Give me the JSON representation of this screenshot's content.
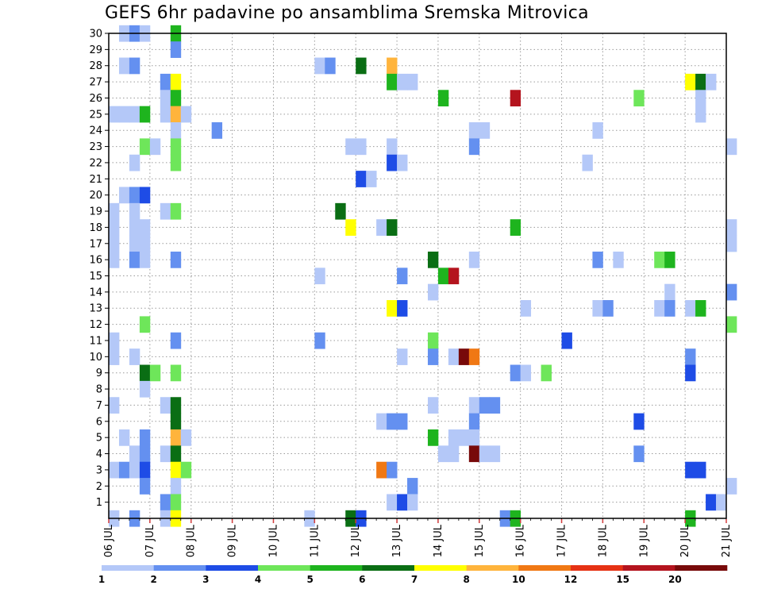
{
  "chart_data": {
    "type": "heatmap",
    "title": "GEFS 6hr padavine po ansamblima Sremska Mitrovica",
    "xlabel": "",
    "ylabel": "",
    "x_tick_labels": [
      "06 JUL",
      "07 JUL",
      "08 JUL",
      "09 JUL",
      "10 JUL",
      "11 JUL",
      "12 JUL",
      "13 JUL",
      "14 JUL",
      "15 JUL",
      "16 JUL",
      "17 JUL",
      "18 JUL",
      "19 JUL",
      "20 JUL",
      "21 JUL"
    ],
    "x_range_days": [
      0,
      15
    ],
    "time_step_hours": 6,
    "y_tick_labels": [
      "1",
      "2",
      "3",
      "4",
      "5",
      "6",
      "7",
      "8",
      "9",
      "10",
      "11",
      "12",
      "13",
      "14",
      "15",
      "16",
      "17",
      "18",
      "19",
      "20",
      "21",
      "22",
      "23",
      "24",
      "25",
      "26",
      "27",
      "28",
      "29",
      "30"
    ],
    "y_range_members": [
      0,
      30
    ],
    "grid": "dotted",
    "colorbar": {
      "position": "bottom",
      "tick_labels": [
        "1",
        "2",
        "3",
        "4",
        "5",
        "6",
        "7",
        "8",
        "10",
        "12",
        "15",
        "20"
      ],
      "colors": [
        "#b4c8f8",
        "#6490f0",
        "#1e4ce6",
        "#6ee65a",
        "#1eb41e",
        "#0a6e14",
        "#ffff00",
        "#ffb43c",
        "#f07814",
        "#e63214",
        "#b4141e",
        "#780a0a"
      ]
    },
    "cells_format": "[member, time_step_index (6h steps from 06 JUL 00Z), color_class (0..11)]",
    "cells": [
      [
        30,
        1,
        0
      ],
      [
        30,
        2,
        1
      ],
      [
        30,
        3,
        0
      ],
      [
        30,
        6,
        4
      ],
      [
        29,
        6,
        1
      ],
      [
        28,
        1,
        0
      ],
      [
        28,
        2,
        1
      ],
      [
        28,
        20,
        0
      ],
      [
        28,
        21,
        1
      ],
      [
        28,
        24,
        5
      ],
      [
        28,
        27,
        7
      ],
      [
        27,
        5,
        1
      ],
      [
        27,
        6,
        6
      ],
      [
        27,
        27,
        4
      ],
      [
        27,
        28,
        0
      ],
      [
        27,
        29,
        0
      ],
      [
        27,
        56,
        6
      ],
      [
        27,
        57,
        5
      ],
      [
        27,
        58,
        0
      ],
      [
        26,
        5,
        0
      ],
      [
        26,
        6,
        4
      ],
      [
        26,
        32,
        4
      ],
      [
        26,
        39,
        10
      ],
      [
        26,
        51,
        3
      ],
      [
        26,
        57,
        0
      ],
      [
        25,
        0,
        0
      ],
      [
        25,
        1,
        0
      ],
      [
        25,
        2,
        0
      ],
      [
        25,
        3,
        4
      ],
      [
        25,
        5,
        0
      ],
      [
        25,
        6,
        7
      ],
      [
        25,
        7,
        0
      ],
      [
        25,
        57,
        0
      ],
      [
        24,
        6,
        0
      ],
      [
        24,
        10,
        1
      ],
      [
        24,
        35,
        0
      ],
      [
        24,
        36,
        0
      ],
      [
        24,
        47,
        0
      ],
      [
        23,
        3,
        3
      ],
      [
        23,
        4,
        0
      ],
      [
        23,
        6,
        3
      ],
      [
        23,
        23,
        0
      ],
      [
        23,
        24,
        0
      ],
      [
        23,
        27,
        0
      ],
      [
        23,
        35,
        1
      ],
      [
        23,
        60,
        0
      ],
      [
        22,
        2,
        0
      ],
      [
        22,
        6,
        3
      ],
      [
        22,
        27,
        2
      ],
      [
        22,
        28,
        0
      ],
      [
        22,
        46,
        0
      ],
      [
        21,
        24,
        2
      ],
      [
        21,
        25,
        0
      ],
      [
        20,
        1,
        0
      ],
      [
        20,
        2,
        1
      ],
      [
        20,
        3,
        2
      ],
      [
        19,
        22,
        5
      ],
      [
        19,
        0,
        0
      ],
      [
        19,
        2,
        0
      ],
      [
        19,
        5,
        0
      ],
      [
        19,
        6,
        3
      ],
      [
        18,
        23,
        6
      ],
      [
        18,
        27,
        3
      ],
      [
        18,
        0,
        0
      ],
      [
        18,
        2,
        0
      ],
      [
        18,
        3,
        0
      ],
      [
        18,
        26,
        0
      ],
      [
        18,
        27,
        5
      ],
      [
        18,
        39,
        4
      ],
      [
        18,
        60,
        0
      ],
      [
        17,
        0,
        0
      ],
      [
        17,
        2,
        0
      ],
      [
        17,
        3,
        0
      ],
      [
        17,
        60,
        0
      ],
      [
        16,
        0,
        0
      ],
      [
        16,
        2,
        1
      ],
      [
        16,
        3,
        0
      ],
      [
        16,
        6,
        1
      ],
      [
        16,
        31,
        5
      ],
      [
        16,
        35,
        0
      ],
      [
        16,
        47,
        1
      ],
      [
        16,
        49,
        0
      ],
      [
        16,
        53,
        3
      ],
      [
        16,
        54,
        4
      ],
      [
        15,
        20,
        0
      ],
      [
        15,
        28,
        1
      ],
      [
        15,
        32,
        4
      ],
      [
        15,
        33,
        10
      ],
      [
        14,
        31,
        0
      ],
      [
        14,
        54,
        0
      ],
      [
        14,
        60,
        1
      ],
      [
        13,
        27,
        6
      ],
      [
        13,
        28,
        2
      ],
      [
        13,
        40,
        0
      ],
      [
        13,
        47,
        0
      ],
      [
        13,
        48,
        1
      ],
      [
        13,
        53,
        0
      ],
      [
        13,
        54,
        1
      ],
      [
        13,
        56,
        0
      ],
      [
        13,
        57,
        4
      ],
      [
        12,
        3,
        3
      ],
      [
        12,
        60,
        3
      ],
      [
        11,
        0,
        0
      ],
      [
        11,
        6,
        1
      ],
      [
        11,
        20,
        1
      ],
      [
        11,
        31,
        3
      ],
      [
        11,
        44,
        2
      ],
      [
        10,
        0,
        0
      ],
      [
        10,
        2,
        0
      ],
      [
        10,
        28,
        0
      ],
      [
        10,
        31,
        1
      ],
      [
        10,
        33,
        0
      ],
      [
        10,
        34,
        11
      ],
      [
        10,
        35,
        8
      ],
      [
        10,
        56,
        1
      ],
      [
        9,
        3,
        5
      ],
      [
        9,
        4,
        3
      ],
      [
        9,
        6,
        3
      ],
      [
        9,
        39,
        1
      ],
      [
        9,
        40,
        0
      ],
      [
        9,
        42,
        3
      ],
      [
        9,
        56,
        2
      ],
      [
        8,
        3,
        0
      ],
      [
        7,
        0,
        0
      ],
      [
        7,
        5,
        0
      ],
      [
        7,
        6,
        5
      ],
      [
        7,
        31,
        0
      ],
      [
        7,
        35,
        0
      ],
      [
        7,
        36,
        1
      ],
      [
        7,
        37,
        1
      ],
      [
        6,
        6,
        5
      ],
      [
        6,
        26,
        0
      ],
      [
        6,
        27,
        1
      ],
      [
        6,
        28,
        1
      ],
      [
        6,
        35,
        1
      ],
      [
        6,
        51,
        2
      ],
      [
        5,
        1,
        0
      ],
      [
        5,
        3,
        1
      ],
      [
        5,
        6,
        7
      ],
      [
        5,
        7,
        0
      ],
      [
        5,
        31,
        4
      ],
      [
        5,
        33,
        0
      ],
      [
        5,
        34,
        0
      ],
      [
        5,
        35,
        0
      ],
      [
        4,
        2,
        0
      ],
      [
        4,
        3,
        1
      ],
      [
        4,
        5,
        0
      ],
      [
        4,
        6,
        5
      ],
      [
        4,
        32,
        0
      ],
      [
        4,
        33,
        0
      ],
      [
        4,
        35,
        11
      ],
      [
        4,
        36,
        0
      ],
      [
        4,
        37,
        0
      ],
      [
        4,
        51,
        1
      ],
      [
        3,
        0,
        0
      ],
      [
        3,
        1,
        1
      ],
      [
        3,
        2,
        0
      ],
      [
        3,
        3,
        2
      ],
      [
        3,
        6,
        6
      ],
      [
        3,
        7,
        3
      ],
      [
        3,
        26,
        8
      ],
      [
        3,
        27,
        1
      ],
      [
        3,
        56,
        2
      ],
      [
        3,
        57,
        2
      ],
      [
        2,
        3,
        1
      ],
      [
        2,
        6,
        0
      ],
      [
        2,
        29,
        1
      ],
      [
        2,
        60,
        0
      ],
      [
        1,
        5,
        1
      ],
      [
        1,
        6,
        3
      ],
      [
        1,
        27,
        0
      ],
      [
        1,
        28,
        2
      ],
      [
        1,
        29,
        0
      ],
      [
        1,
        58,
        2
      ],
      [
        1,
        59,
        0
      ],
      [
        0,
        0,
        0
      ],
      [
        0,
        2,
        1
      ],
      [
        0,
        5,
        0
      ],
      [
        0,
        6,
        6
      ],
      [
        0,
        19,
        0
      ],
      [
        0,
        23,
        5
      ],
      [
        0,
        24,
        2
      ],
      [
        0,
        38,
        1
      ],
      [
        0,
        39,
        4
      ],
      [
        0,
        56,
        4
      ]
    ]
  }
}
